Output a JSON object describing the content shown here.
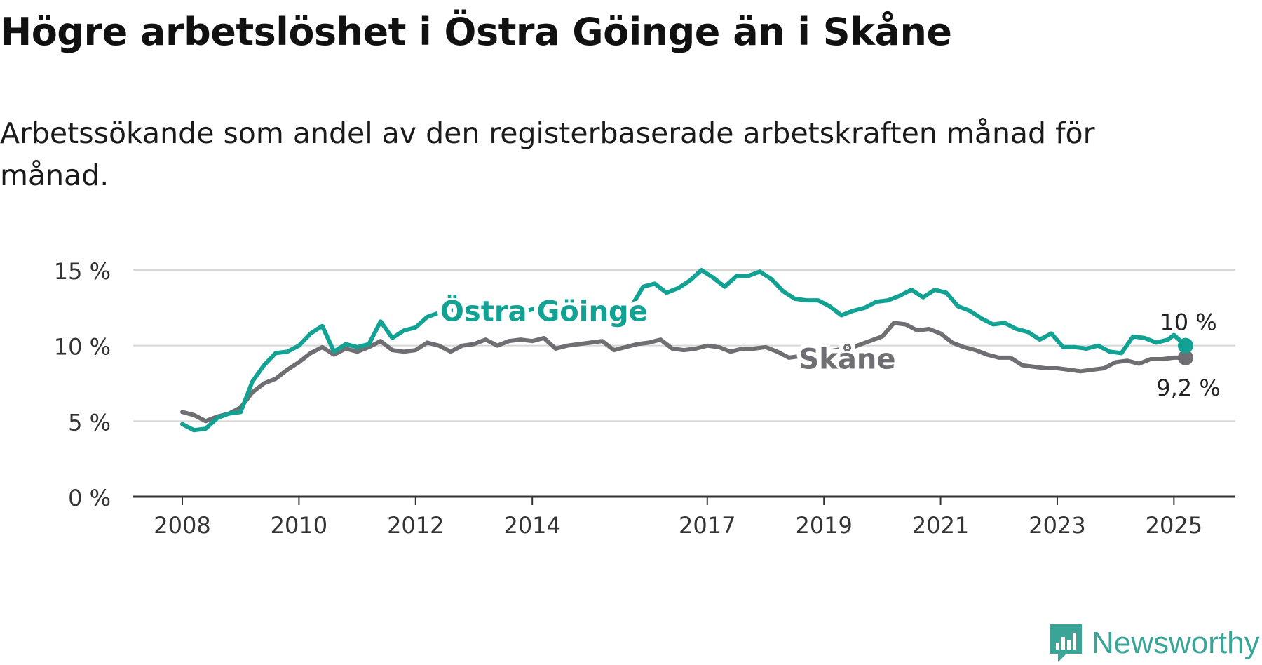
{
  "title": "Högre arbetslöshet i Östra Göinge än i Skåne",
  "subtitle": "Arbetssökande som andel av den registerbaserade arbetskraften månad för månad.",
  "brand": {
    "name": "Newsworthy",
    "icon": "newsworthy-logo-icon",
    "color": "#3aa596"
  },
  "chart_data": {
    "type": "line",
    "title": "Högre arbetslöshet i Östra Göinge än i Skåne",
    "subtitle": "Arbetssökande som andel av den registerbaserade arbetskraften månad för månad.",
    "xlabel": "",
    "ylabel": "",
    "xlim": [
      2008.0,
      2025.2
    ],
    "ylim": [
      0,
      15
    ],
    "yticks": [
      0,
      5,
      10,
      15
    ],
    "ytick_labels": [
      "0 %",
      "5 %",
      "10 %",
      "15 %"
    ],
    "xticks": [
      2008,
      2010,
      2012,
      2014,
      2017,
      2019,
      2021,
      2023,
      2025
    ],
    "xtick_labels": [
      "2008",
      "2010",
      "2012",
      "2014",
      "2017",
      "2019",
      "2021",
      "2023",
      "2025"
    ],
    "grid": true,
    "legend": "inline labels",
    "series": [
      {
        "name": "Östra Göinge",
        "color": "#12a294",
        "end_label": "10 %",
        "points": [
          [
            2008.0,
            4.8
          ],
          [
            2008.2,
            4.4
          ],
          [
            2008.4,
            4.5
          ],
          [
            2008.6,
            5.2
          ],
          [
            2008.8,
            5.5
          ],
          [
            2009.0,
            5.6
          ],
          [
            2009.2,
            7.6
          ],
          [
            2009.4,
            8.7
          ],
          [
            2009.6,
            9.5
          ],
          [
            2009.8,
            9.6
          ],
          [
            2010.0,
            10.0
          ],
          [
            2010.2,
            10.8
          ],
          [
            2010.4,
            11.3
          ],
          [
            2010.6,
            9.6
          ],
          [
            2010.8,
            10.1
          ],
          [
            2011.0,
            9.9
          ],
          [
            2011.2,
            10.1
          ],
          [
            2011.4,
            11.6
          ],
          [
            2011.6,
            10.5
          ],
          [
            2011.8,
            11.0
          ],
          [
            2012.0,
            11.2
          ],
          [
            2012.2,
            11.9
          ],
          [
            2012.5,
            12.3
          ],
          [
            2012.8,
            12.4
          ],
          [
            2013.0,
            12.2
          ],
          [
            2013.3,
            12.2
          ],
          [
            2013.6,
            12.5
          ],
          [
            2013.9,
            12.3
          ],
          [
            2014.2,
            12.6
          ],
          [
            2014.5,
            12.4
          ],
          [
            2014.8,
            12.6
          ],
          [
            2015.1,
            11.8
          ],
          [
            2015.4,
            11.9
          ],
          [
            2015.7,
            12.6
          ],
          [
            2015.9,
            13.9
          ],
          [
            2016.1,
            14.1
          ],
          [
            2016.3,
            13.5
          ],
          [
            2016.5,
            13.8
          ],
          [
            2016.7,
            14.3
          ],
          [
            2016.9,
            15.0
          ],
          [
            2017.1,
            14.5
          ],
          [
            2017.3,
            13.9
          ],
          [
            2017.5,
            14.6
          ],
          [
            2017.7,
            14.6
          ],
          [
            2017.9,
            14.9
          ],
          [
            2018.1,
            14.4
          ],
          [
            2018.3,
            13.6
          ],
          [
            2018.5,
            13.1
          ],
          [
            2018.7,
            13.0
          ],
          [
            2018.9,
            13.0
          ],
          [
            2019.1,
            12.6
          ],
          [
            2019.3,
            12.0
          ],
          [
            2019.5,
            12.3
          ],
          [
            2019.7,
            12.5
          ],
          [
            2019.9,
            12.9
          ],
          [
            2020.1,
            13.0
          ],
          [
            2020.3,
            13.3
          ],
          [
            2020.5,
            13.7
          ],
          [
            2020.7,
            13.2
          ],
          [
            2020.9,
            13.7
          ],
          [
            2021.1,
            13.5
          ],
          [
            2021.3,
            12.6
          ],
          [
            2021.5,
            12.3
          ],
          [
            2021.7,
            11.8
          ],
          [
            2021.9,
            11.4
          ],
          [
            2022.1,
            11.5
          ],
          [
            2022.3,
            11.1
          ],
          [
            2022.5,
            10.9
          ],
          [
            2022.7,
            10.4
          ],
          [
            2022.9,
            10.8
          ],
          [
            2023.1,
            9.9
          ],
          [
            2023.3,
            9.9
          ],
          [
            2023.5,
            9.8
          ],
          [
            2023.7,
            10.0
          ],
          [
            2023.9,
            9.6
          ],
          [
            2024.1,
            9.5
          ],
          [
            2024.3,
            10.6
          ],
          [
            2024.5,
            10.5
          ],
          [
            2024.7,
            10.2
          ],
          [
            2024.9,
            10.4
          ],
          [
            2025.0,
            10.7
          ],
          [
            2025.2,
            10.0
          ]
        ]
      },
      {
        "name": "Skåne",
        "color": "#6f6e73",
        "end_label": "9,2 %",
        "points": [
          [
            2008.0,
            5.6
          ],
          [
            2008.2,
            5.4
          ],
          [
            2008.4,
            5.0
          ],
          [
            2008.6,
            5.3
          ],
          [
            2008.8,
            5.5
          ],
          [
            2009.0,
            5.9
          ],
          [
            2009.2,
            6.9
          ],
          [
            2009.4,
            7.5
          ],
          [
            2009.6,
            7.8
          ],
          [
            2009.8,
            8.4
          ],
          [
            2010.0,
            8.9
          ],
          [
            2010.2,
            9.5
          ],
          [
            2010.4,
            9.9
          ],
          [
            2010.6,
            9.4
          ],
          [
            2010.8,
            9.8
          ],
          [
            2011.0,
            9.6
          ],
          [
            2011.2,
            9.9
          ],
          [
            2011.4,
            10.3
          ],
          [
            2011.6,
            9.7
          ],
          [
            2011.8,
            9.6
          ],
          [
            2012.0,
            9.7
          ],
          [
            2012.2,
            10.2
          ],
          [
            2012.4,
            10.0
          ],
          [
            2012.6,
            9.6
          ],
          [
            2012.8,
            10.0
          ],
          [
            2013.0,
            10.1
          ],
          [
            2013.2,
            10.4
          ],
          [
            2013.4,
            10.0
          ],
          [
            2013.6,
            10.3
          ],
          [
            2013.8,
            10.4
          ],
          [
            2014.0,
            10.3
          ],
          [
            2014.2,
            10.5
          ],
          [
            2014.4,
            9.8
          ],
          [
            2014.6,
            10.0
          ],
          [
            2014.8,
            10.1
          ],
          [
            2015.0,
            10.2
          ],
          [
            2015.2,
            10.3
          ],
          [
            2015.4,
            9.7
          ],
          [
            2015.6,
            9.9
          ],
          [
            2015.8,
            10.1
          ],
          [
            2016.0,
            10.2
          ],
          [
            2016.2,
            10.4
          ],
          [
            2016.4,
            9.8
          ],
          [
            2016.6,
            9.7
          ],
          [
            2016.8,
            9.8
          ],
          [
            2017.0,
            10.0
          ],
          [
            2017.2,
            9.9
          ],
          [
            2017.4,
            9.6
          ],
          [
            2017.6,
            9.8
          ],
          [
            2017.8,
            9.8
          ],
          [
            2018.0,
            9.9
          ],
          [
            2018.2,
            9.6
          ],
          [
            2018.4,
            9.2
          ],
          [
            2018.6,
            9.3
          ],
          [
            2019.5,
            9.9
          ],
          [
            2020.0,
            10.6
          ],
          [
            2020.2,
            11.5
          ],
          [
            2020.4,
            11.4
          ],
          [
            2020.6,
            11.0
          ],
          [
            2020.8,
            11.1
          ],
          [
            2021.0,
            10.8
          ],
          [
            2021.2,
            10.2
          ],
          [
            2021.4,
            9.9
          ],
          [
            2021.6,
            9.7
          ],
          [
            2021.8,
            9.4
          ],
          [
            2022.0,
            9.2
          ],
          [
            2022.2,
            9.2
          ],
          [
            2022.4,
            8.7
          ],
          [
            2022.6,
            8.6
          ],
          [
            2022.8,
            8.5
          ],
          [
            2023.0,
            8.5
          ],
          [
            2023.2,
            8.4
          ],
          [
            2023.4,
            8.3
          ],
          [
            2023.6,
            8.4
          ],
          [
            2023.8,
            8.5
          ],
          [
            2024.0,
            8.9
          ],
          [
            2024.2,
            9.0
          ],
          [
            2024.4,
            8.8
          ],
          [
            2024.6,
            9.1
          ],
          [
            2024.8,
            9.1
          ],
          [
            2025.0,
            9.2
          ],
          [
            2025.2,
            9.2
          ]
        ]
      }
    ],
    "annotations": [
      {
        "text": "Östra Göinge",
        "x": 2014.2,
        "y": 12.2,
        "series": "Östra Göinge"
      },
      {
        "text": "Skåne",
        "x": 2019.4,
        "y": 9.3,
        "series": "Skåne"
      },
      {
        "text": "10 %",
        "x": 2025.2,
        "y": 10.0,
        "series": "Östra Göinge"
      },
      {
        "text": "9,2 %",
        "x": 2025.2,
        "y": 9.2,
        "series": "Skåne"
      }
    ]
  }
}
